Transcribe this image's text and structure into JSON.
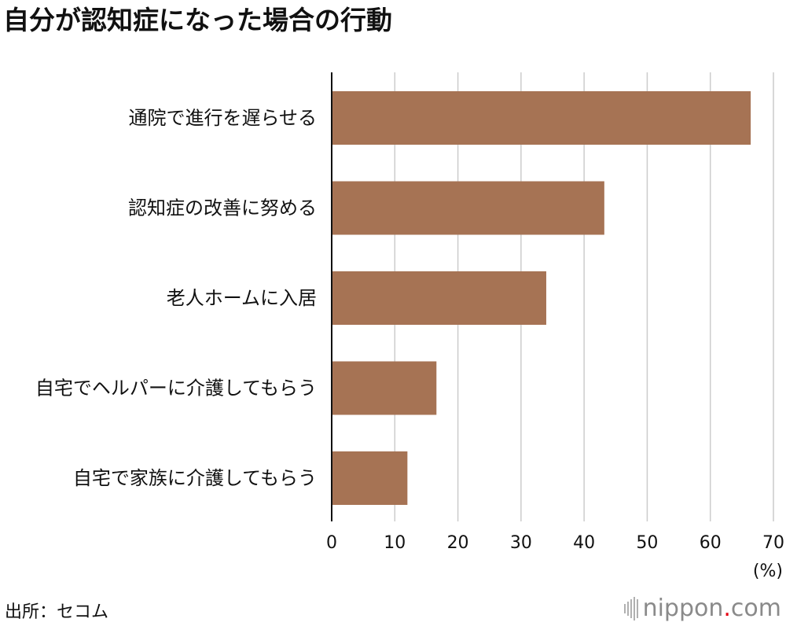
{
  "title": "自分が認知症になった場合の行動",
  "source": "出所：セコム",
  "logo": {
    "name": "nippon",
    "dot": ".",
    "tld": "com"
  },
  "colors": {
    "bar": "#a67354",
    "grid": "#cccccc",
    "axis": "#111111"
  },
  "chart_data": {
    "type": "bar",
    "orientation": "horizontal",
    "categories": [
      "通院で進行を遅らせる",
      "認知症の改善に努める",
      "老人ホームに入居",
      "自宅でヘルパーに介護してもらう",
      "自宅で家族に介護してもらう"
    ],
    "values": [
      66.4,
      43.2,
      34.0,
      16.6,
      12.0
    ],
    "xlim": [
      0,
      70
    ],
    "xticks": [
      0,
      10,
      20,
      30,
      40,
      50,
      60,
      70
    ],
    "xunit": "(%)",
    "grid": true
  }
}
